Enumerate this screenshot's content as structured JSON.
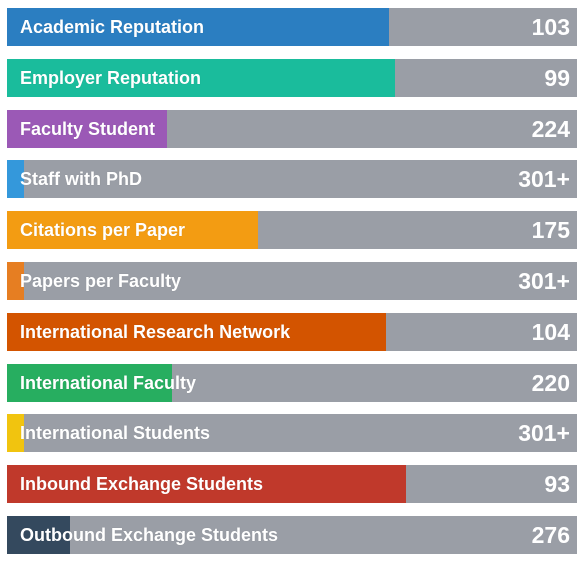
{
  "chart_data": {
    "type": "bar",
    "orientation": "horizontal",
    "title": "",
    "xlabel": "",
    "ylabel": "",
    "categories": [
      "Academic Reputation",
      "Employer Reputation",
      "Faculty Student",
      "Staff with PhD",
      "Citations per Paper",
      "Papers per Faculty",
      "International Research Network",
      "International Faculty",
      "International Students",
      "Inbound Exchange Students",
      "Outbound Exchange Students"
    ],
    "value_labels": [
      "103",
      "99",
      "224",
      "301+",
      "175",
      "301+",
      "104",
      "220",
      "301+",
      "93",
      "276"
    ],
    "fill_fraction": [
      0.67,
      0.68,
      0.28,
      0.03,
      0.44,
      0.03,
      0.665,
      0.29,
      0.03,
      0.7,
      0.11
    ],
    "colors": [
      "#2b7ec1",
      "#1abc9c",
      "#9b59b6",
      "#3498db",
      "#f39c12",
      "#e67e22",
      "#d35400",
      "#27ae60",
      "#f1c40f",
      "#c0392b",
      "#34495e"
    ],
    "track_color": "#9a9ea6",
    "grid": false,
    "legend": "none"
  }
}
